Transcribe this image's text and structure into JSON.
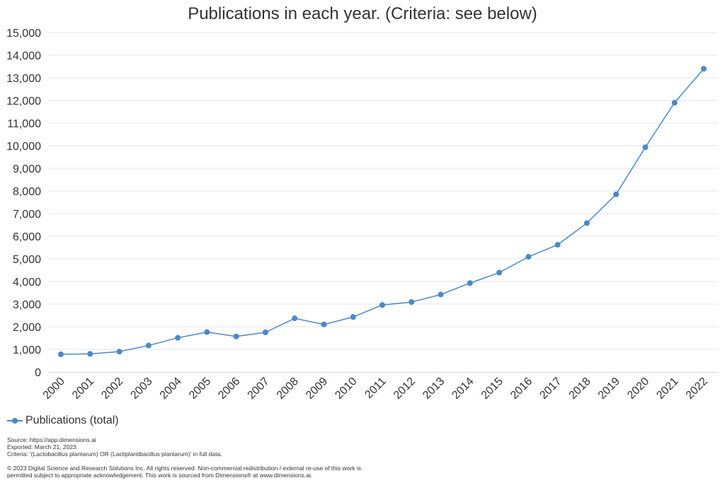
{
  "chart_data": {
    "type": "line",
    "title": "Publications in each year. (Criteria: see below)",
    "categories": [
      "2000",
      "2001",
      "2002",
      "2003",
      "2004",
      "2005",
      "2006",
      "2007",
      "2008",
      "2009",
      "2010",
      "2011",
      "2012",
      "2013",
      "2014",
      "2015",
      "2016",
      "2017",
      "2018",
      "2019",
      "2020",
      "2021",
      "2022"
    ],
    "series": [
      {
        "name": "Publications (total)",
        "values": [
          780,
          800,
          900,
          1170,
          1510,
          1760,
          1570,
          1750,
          2370,
          2100,
          2430,
          2960,
          3090,
          3420,
          3930,
          4390,
          5090,
          5620,
          6580,
          7850,
          9930,
          11900,
          13400
        ],
        "color": "#4a89c8"
      }
    ],
    "ylim": [
      0,
      15000
    ],
    "yticks": [
      "0",
      "1,000",
      "2,000",
      "3,000",
      "4,000",
      "5,000",
      "6,000",
      "7,000",
      "8,000",
      "9,000",
      "10,000",
      "11,000",
      "12,000",
      "13,000",
      "14,000",
      "15,000"
    ],
    "grid": true,
    "legend_position": "bottom-left"
  },
  "footer": {
    "source": "Source: https://app.dimensions.ai",
    "exported": "Exported: March 21, 2023",
    "criteria": "Criteria: '(Lactobacillus plantarum) OR (Lactiplantibacillus plantarum)' in full data.",
    "copyright_line1": "© 2023 Digital Science and Research Solutions Inc. All rights reserved. Non-commercial redistribution / external re-use of this work is",
    "copyright_line2": "permitted subject to appropriate acknowledgement. This work is sourced from Dimensions® at www.dimensions.ai."
  }
}
